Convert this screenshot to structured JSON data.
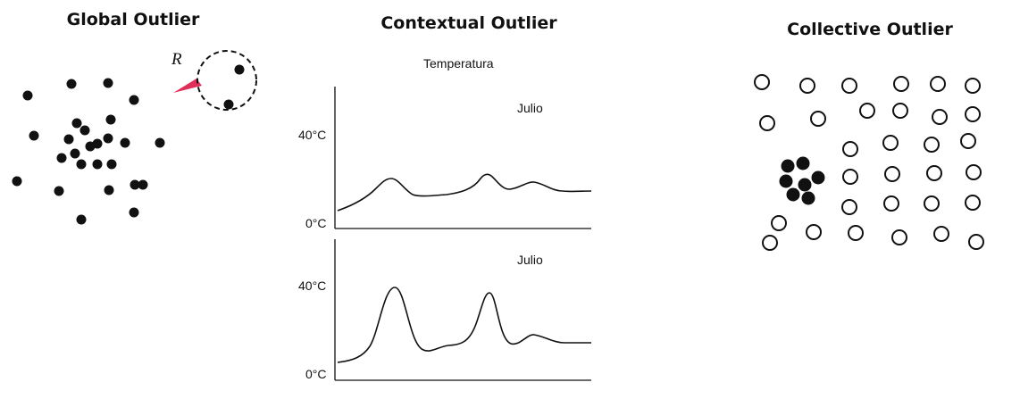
{
  "panels": {
    "global": {
      "title": "Global Outlier",
      "radius_label": "R",
      "radius_color": "#e0305a"
    },
    "contextual": {
      "title": "Contextual Outlier",
      "temperature_label": "Temperatura",
      "top_chart": {
        "month_label": "Julio",
        "y_high_label": "40°C",
        "y_low_label": "0°C"
      },
      "bottom_chart": {
        "month_label": "Julio",
        "y_high_label": "40°C",
        "y_low_label": "0°C"
      }
    },
    "collective": {
      "title": "Collective Outlier"
    }
  },
  "colors": {
    "ink": "#111111",
    "background": "#ffffff"
  }
}
